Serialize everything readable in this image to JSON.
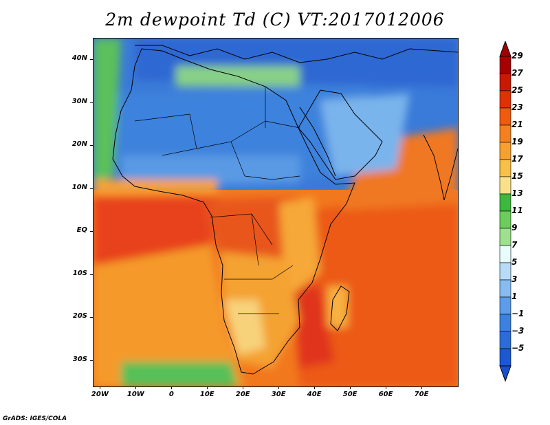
{
  "title": "2m dewpoint Td (C) VT:2017012006",
  "credit": "GrADS: IGES/COLA",
  "axes": {
    "lat_labels": [
      "40N",
      "30N",
      "20N",
      "10N",
      "EQ",
      "10S",
      "20S",
      "30S"
    ],
    "lat_values": [
      40,
      30,
      20,
      10,
      0,
      -10,
      -20,
      -30
    ],
    "lon_labels": [
      "20W",
      "10W",
      "0",
      "10E",
      "20E",
      "30E",
      "40E",
      "50E",
      "60E",
      "70E"
    ],
    "lon_values": [
      -20,
      -10,
      0,
      10,
      20,
      30,
      40,
      50,
      60,
      70
    ],
    "lat_range": [
      -36,
      45
    ],
    "lon_range": [
      -22,
      80
    ]
  },
  "colorbar": {
    "labels": [
      "29",
      "27",
      "25",
      "23",
      "21",
      "19",
      "17",
      "15",
      "13",
      "11",
      "9",
      "7",
      "5",
      "3",
      "1",
      "−1",
      "−3",
      "−5"
    ],
    "colors": [
      "#a80000",
      "#c81a00",
      "#e03200",
      "#f05a10",
      "#f58020",
      "#f7a030",
      "#f8c048",
      "#fbe08c",
      "#3cb83c",
      "#6ccc5c",
      "#9ee08e",
      "#e8fcfc",
      "#b8dcf8",
      "#88bcf0",
      "#5c9ce8",
      "#3c80e0",
      "#2c6cd8",
      "#1c58d0"
    ],
    "top_color": "#a00000",
    "bottom_color": "#1850d0"
  }
}
